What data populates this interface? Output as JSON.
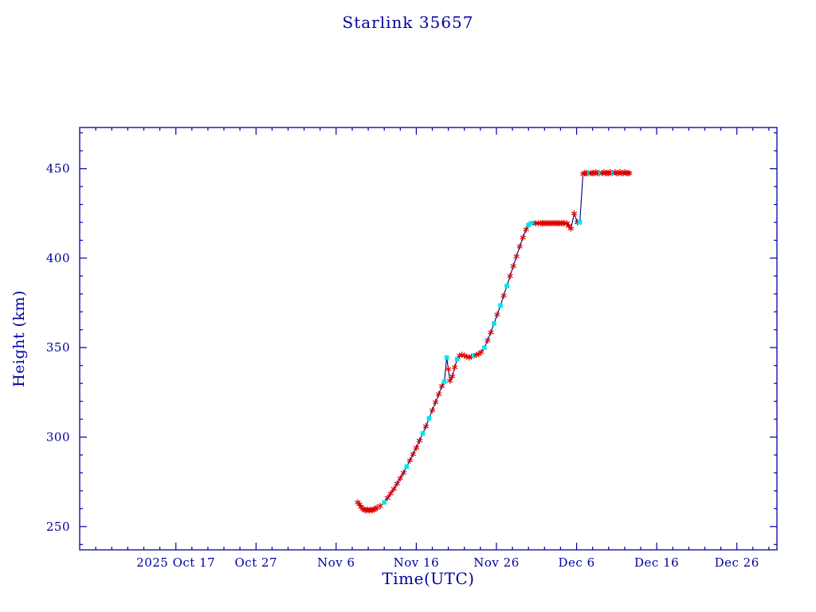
{
  "page": {
    "background": "#ffffff"
  },
  "chart_data": {
    "type": "line",
    "title": "Starlink 35657",
    "xlabel": "Time(UTC)",
    "ylabel": "Height (km)",
    "x_unit": "days since 2025-10-05 00:00 UTC",
    "xlim": [
      0,
      87
    ],
    "ylim": [
      237,
      473
    ],
    "grid": false,
    "legend": "none",
    "axis_color": "#0000a0",
    "text_color": "#0000a0",
    "line_color": "#000080",
    "marker_colors": {
      "r": "#dd0000",
      "c": "#00e5ee"
    },
    "marker_styles": {
      "r": "asterisk",
      "c": "filled-square"
    },
    "x_minor_step": 2,
    "y_minor_step": 10,
    "x_ticks": [
      {
        "day": 12,
        "label": "2025 Oct 17"
      },
      {
        "day": 22,
        "label": "Oct 27"
      },
      {
        "day": 32,
        "label": "Nov 6"
      },
      {
        "day": 42,
        "label": "Nov 16"
      },
      {
        "day": 52,
        "label": "Nov 26"
      },
      {
        "day": 62,
        "label": "Dec 6"
      },
      {
        "day": 72,
        "label": "Dec 16"
      },
      {
        "day": 82,
        "label": "Dec 26"
      }
    ],
    "y_ticks": [
      250,
      300,
      350,
      400,
      450
    ],
    "series": [
      {
        "name": "orbital-height",
        "points": [
          [
            34.7,
            263.5,
            "r"
          ],
          [
            34.9,
            262.5,
            "r"
          ],
          [
            35.1,
            261,
            "r"
          ],
          [
            35.3,
            260,
            "r"
          ],
          [
            35.5,
            259.5,
            "r"
          ],
          [
            35.7,
            259,
            "r"
          ],
          [
            35.9,
            259.5,
            "r"
          ],
          [
            36.1,
            259,
            "r"
          ],
          [
            36.3,
            259.5,
            "r"
          ],
          [
            36.5,
            259,
            "r"
          ],
          [
            36.7,
            259.5,
            "r"
          ],
          [
            36.9,
            260,
            "r"
          ],
          [
            37.1,
            260.5,
            "r"
          ],
          [
            37.5,
            261.5,
            "r"
          ],
          [
            38,
            263.5,
            "c"
          ],
          [
            38.4,
            266,
            "r"
          ],
          [
            38.8,
            268.5,
            "r"
          ],
          [
            39.2,
            271,
            "r"
          ],
          [
            39.6,
            274,
            "r"
          ],
          [
            40,
            277,
            "r"
          ],
          [
            40.4,
            280,
            "r"
          ],
          [
            40.8,
            283.5,
            "c"
          ],
          [
            41.2,
            287,
            "r"
          ],
          [
            41.6,
            290.5,
            "r"
          ],
          [
            42,
            294,
            "r"
          ],
          [
            42.4,
            298,
            "r"
          ],
          [
            42.8,
            302,
            "c"
          ],
          [
            43.2,
            306,
            "r"
          ],
          [
            43.6,
            310.5,
            "c"
          ],
          [
            44,
            315,
            "r"
          ],
          [
            44.4,
            319.5,
            "r"
          ],
          [
            44.8,
            324,
            "r"
          ],
          [
            45.2,
            328.5,
            "r"
          ],
          [
            45.5,
            331,
            "c"
          ],
          [
            45.8,
            344.5,
            "c"
          ],
          [
            46,
            338,
            "r"
          ],
          [
            46.2,
            331.5,
            "r"
          ],
          [
            46.5,
            334,
            "r"
          ],
          [
            46.8,
            339,
            "r"
          ],
          [
            47.1,
            343.5,
            "c"
          ],
          [
            47.4,
            345.5,
            "r"
          ],
          [
            47.7,
            346,
            "r"
          ],
          [
            48,
            345.5,
            "r"
          ],
          [
            48.3,
            345,
            "r"
          ],
          [
            48.6,
            344.5,
            "r"
          ],
          [
            48.9,
            345,
            "r"
          ],
          [
            49.2,
            345.5,
            "c"
          ],
          [
            49.5,
            346,
            "r"
          ],
          [
            49.8,
            346.5,
            "r"
          ],
          [
            50.1,
            347.5,
            "r"
          ],
          [
            50.5,
            350,
            "c"
          ],
          [
            50.9,
            354,
            "r"
          ],
          [
            51.3,
            358.5,
            "r"
          ],
          [
            51.7,
            363.5,
            "c"
          ],
          [
            52.1,
            368.5,
            "r"
          ],
          [
            52.5,
            373.5,
            "c"
          ],
          [
            52.9,
            379,
            "r"
          ],
          [
            53.3,
            384.5,
            "c"
          ],
          [
            53.7,
            390,
            "r"
          ],
          [
            54.1,
            395.5,
            "r"
          ],
          [
            54.5,
            401,
            "r"
          ],
          [
            54.9,
            406.5,
            "r"
          ],
          [
            55.3,
            411.5,
            "r"
          ],
          [
            55.7,
            416,
            "r"
          ],
          [
            56,
            418.5,
            "c"
          ],
          [
            56.3,
            419.5,
            "c"
          ],
          [
            56.6,
            419.5,
            "c"
          ],
          [
            56.9,
            419.5,
            "r"
          ],
          [
            57.2,
            419.5,
            "r"
          ],
          [
            57.5,
            419.5,
            "r"
          ],
          [
            57.7,
            419.5,
            "r"
          ],
          [
            57.9,
            419.5,
            "r"
          ],
          [
            58.1,
            419.5,
            "r"
          ],
          [
            58.3,
            419.5,
            "r"
          ],
          [
            58.5,
            419.5,
            "r"
          ],
          [
            58.7,
            419.5,
            "r"
          ],
          [
            58.9,
            419.5,
            "r"
          ],
          [
            59.1,
            419.5,
            "r"
          ],
          [
            59.3,
            419.5,
            "r"
          ],
          [
            59.5,
            419.5,
            "r"
          ],
          [
            59.7,
            419.5,
            "r"
          ],
          [
            59.9,
            419.5,
            "r"
          ],
          [
            60.1,
            419.5,
            "r"
          ],
          [
            60.3,
            419.5,
            "r"
          ],
          [
            60.5,
            419.5,
            "r"
          ],
          [
            60.8,
            419.5,
            "r"
          ],
          [
            61,
            418,
            "r"
          ],
          [
            61.3,
            416.5,
            "r"
          ],
          [
            61.7,
            425,
            "r"
          ],
          [
            62.1,
            420,
            "r"
          ],
          [
            62.4,
            420,
            "c"
          ],
          [
            62.8,
            447,
            "r"
          ],
          [
            63,
            447.5,
            "r"
          ],
          [
            63.2,
            447.5,
            "r"
          ],
          [
            63.4,
            447.5,
            "r"
          ],
          [
            63.6,
            447.5,
            "c"
          ],
          [
            63.8,
            447.5,
            "r"
          ],
          [
            64,
            447.5,
            "r"
          ],
          [
            64.2,
            447.5,
            "r"
          ],
          [
            64.4,
            448,
            "r"
          ],
          [
            64.6,
            447.5,
            "r"
          ],
          [
            64.8,
            447.5,
            "r"
          ],
          [
            65,
            447.5,
            "c"
          ],
          [
            65.2,
            447.5,
            "r"
          ],
          [
            65.4,
            448,
            "r"
          ],
          [
            65.6,
            447.5,
            "r"
          ],
          [
            65.8,
            447.5,
            "r"
          ],
          [
            66,
            447.5,
            "r"
          ],
          [
            66.2,
            448,
            "r"
          ],
          [
            66.4,
            447.5,
            "r"
          ],
          [
            66.6,
            447.5,
            "c"
          ],
          [
            66.8,
            448,
            "r"
          ],
          [
            67,
            447.5,
            "r"
          ],
          [
            67.2,
            447.5,
            "r"
          ],
          [
            67.4,
            448,
            "r"
          ],
          [
            67.6,
            447.5,
            "r"
          ],
          [
            67.8,
            447.5,
            "r"
          ],
          [
            68,
            448,
            "r"
          ],
          [
            68.2,
            447.5,
            "r"
          ],
          [
            68.4,
            447.5,
            "r"
          ],
          [
            68.6,
            447.5,
            "r"
          ]
        ]
      }
    ]
  }
}
